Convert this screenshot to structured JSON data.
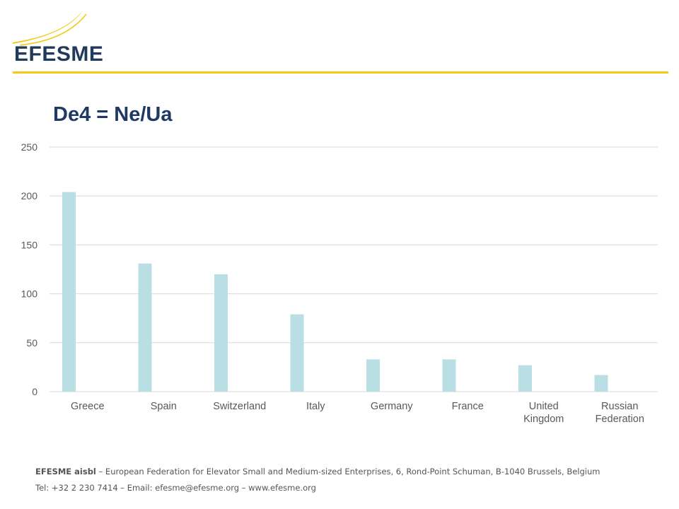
{
  "brand": {
    "logo_text": "EFESME",
    "accent_color": "#f2c913",
    "text_color": "#1f3a5a"
  },
  "chart_data": {
    "type": "bar",
    "title": "De4 = Ne/Ua",
    "categories": [
      [
        "Greece"
      ],
      [
        "Spain"
      ],
      [
        "Switzerland"
      ],
      [
        "Italy"
      ],
      [
        "Germany"
      ],
      [
        "France"
      ],
      [
        "United",
        "Kingdom"
      ],
      [
        "Russian",
        "Federation"
      ]
    ],
    "values": [
      204,
      131,
      120,
      79,
      33,
      33,
      27,
      17
    ],
    "ylim": [
      0,
      250
    ],
    "yticks": [
      0,
      50,
      100,
      150,
      200,
      250
    ],
    "grid": true,
    "bar_color": "#b9dfe4",
    "xlabel": "",
    "ylabel": ""
  },
  "footer": {
    "org_bold": "EFESME aisbl",
    "org_rest": " – European Federation for Elevator Small and Medium-sized Enterprises, 6, Rond-Point Schuman, B-1040 Brussels, Belgium",
    "contact": "Tel: +32 2 230 7414 – Email: efesme@efesme.org – www.efesme.org"
  }
}
